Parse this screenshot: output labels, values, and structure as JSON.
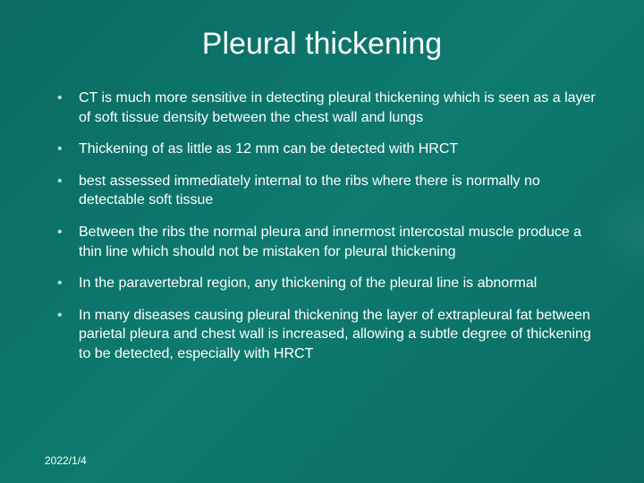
{
  "slide": {
    "title": "Pleural thickening",
    "title_fontsize": 34,
    "title_color": "#ffffff",
    "background_color": "#0a6b62",
    "bullet_color": "#b8e0d8",
    "text_color": "#ffffff",
    "body_fontsize": 16,
    "bullets": [
      "CT is much more sensitive in detecting pleural thickening which is seen as a layer of soft tissue density between the chest wall and lungs",
      "Thickening of as little as 12 mm can be detected with HRCT",
      "best assessed immediately internal to the ribs where there is normally no detectable soft tissue",
      "Between the ribs the normal pleura and innermost intercostal muscle produce a thin line which should not be mistaken for pleural thickening",
      "In the paravertebral region, any thickening of the pleural line is abnormal",
      "In many diseases causing pleural thickening the layer of extrapleural fat between parietal pleura and chest wall is increased, allowing a subtle degree of thickening to be detected, especially with HRCT"
    ],
    "footer_date": "2022/1/4",
    "footer_fontsize": 12
  }
}
